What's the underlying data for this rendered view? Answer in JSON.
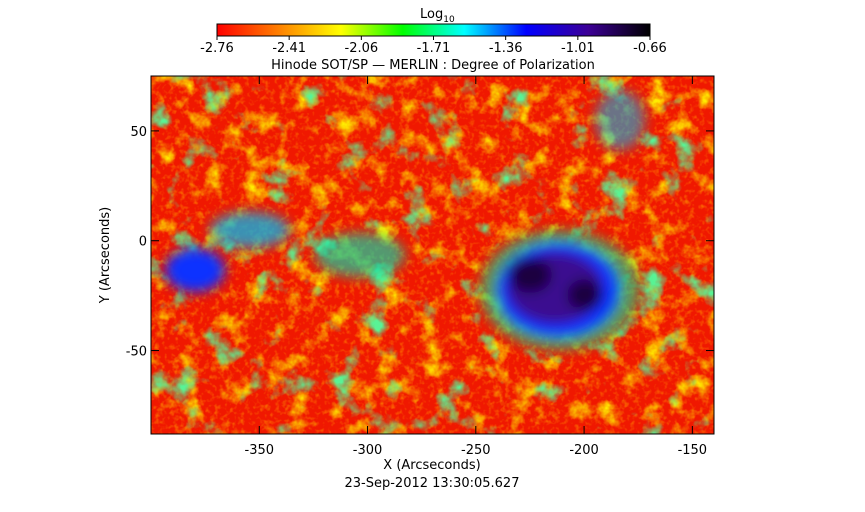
{
  "chart_data": {
    "type": "heatmap",
    "title": "Hinode SOT/SP — MERLIN : Degree of Polarization",
    "x_label": "X (Arcseconds)",
    "y_label": "Y (Arcseconds)",
    "footer": "23-Sep-2012 13:30:05.627",
    "xlim": [
      -400,
      -140
    ],
    "xticks": [
      -350,
      -300,
      -250,
      -200,
      -150
    ],
    "ylim": [
      -88,
      75
    ],
    "yticks": [
      -50,
      0,
      50
    ],
    "colorbar": {
      "label": "Log",
      "label_sub": "10",
      "lim": [
        -2.76,
        -0.66
      ],
      "ticks": [
        -2.76,
        -2.41,
        -2.06,
        -1.71,
        -1.36,
        -1.01,
        -0.66
      ],
      "colormap": [
        "#ff0000",
        "#ff8000",
        "#ffff00",
        "#00ff00",
        "#00ffff",
        "#0000ff",
        "#3c0096",
        "#000000"
      ]
    }
  }
}
